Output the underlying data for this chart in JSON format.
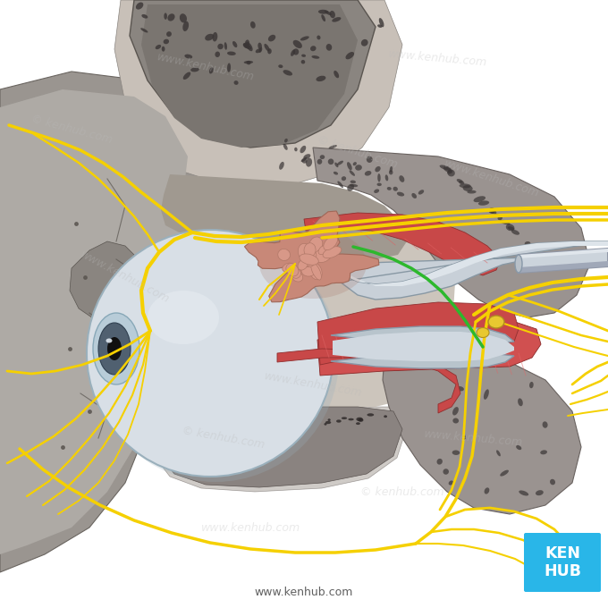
{
  "bg_color": "#ffffff",
  "kenhub_box_color": "#29b6e8",
  "kenhub_text": "KEN\nHUB",
  "website": "www.kenhub.com",
  "nerve_yellow": "#f5d000",
  "nerve_green": "#2db82d",
  "muscle_red": "#c84040",
  "muscle_light": "#d86060",
  "eyeball_color": "#ccd8e0",
  "lacrimal_color": "#c88878",
  "lacrimal_dark": "#b07060",
  "bone_main": "#9a9090",
  "bone_light": "#b8b0a8",
  "bone_spongy": "#c8c0b8",
  "bone_dark": "#6a6060",
  "bone_trabecula": "#3a3030",
  "skin_color": "#e8e0d8",
  "orbital_dark": "#706868",
  "ganglion_color": "#e8c830",
  "watermark_color": "#bbbbbb",
  "watermark_alpha": 0.3,
  "sheath_color": "#c0ccd4",
  "sheath_dark": "#8898a4"
}
